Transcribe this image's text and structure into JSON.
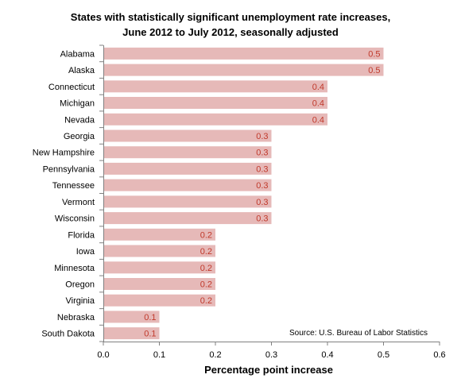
{
  "chart_data": {
    "type": "bar",
    "orientation": "horizontal",
    "title_lines": [
      "States with statistically significant unemployment rate increases,",
      "June 2012 to July 2012, seasonally adjusted"
    ],
    "categories": [
      "Alabama",
      "Alaska",
      "Connecticut",
      "Michigan",
      "Nevada",
      "Georgia",
      "New Hampshire",
      "Pennsylvania",
      "Tennessee",
      "Vermont",
      "Wisconsin",
      "Florida",
      "Iowa",
      "Minnesota",
      "Oregon",
      "Virginia",
      "Nebraska",
      "South Dakota"
    ],
    "values": [
      0.5,
      0.5,
      0.4,
      0.4,
      0.4,
      0.3,
      0.3,
      0.3,
      0.3,
      0.3,
      0.3,
      0.2,
      0.2,
      0.2,
      0.2,
      0.2,
      0.1,
      0.1
    ],
    "xlabel": "Percentage point increase",
    "ylabel": "",
    "xlim": [
      0,
      0.6
    ],
    "xticks": [
      "0.0",
      "0.1",
      "0.2",
      "0.3",
      "0.4",
      "0.5",
      "0.6"
    ],
    "grid": false,
    "source": "Source: U.S. Bureau of Labor Statistics",
    "colors": {
      "bar": "#e6b9b8",
      "data_label": "#c0392b",
      "axis": "#808080"
    }
  }
}
